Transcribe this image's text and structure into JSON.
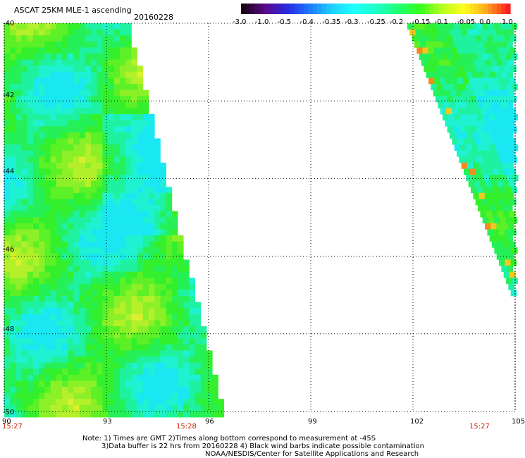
{
  "header": {
    "title": "ASCAT 25KM MLE-1 ascending",
    "date": "20160228"
  },
  "colorbar": {
    "labels": [
      "-3.0",
      "-1.0",
      "-0.5",
      "-0.4",
      "-0.35",
      "-0.3",
      "-0.25",
      "-0.2",
      "-0.15",
      "-0.1",
      "-0.05",
      "0.0",
      "1.0"
    ],
    "colors": [
      "#1a0014",
      "#5a0a8c",
      "#2a2ae0",
      "#1e78ff",
      "#1ecfff",
      "#1effff",
      "#1effc8",
      "#1eff78",
      "#32ff1e",
      "#b4ff1e",
      "#ffff1e",
      "#ffaa1e",
      "#ff1e1e"
    ]
  },
  "map": {
    "lat_labels": [
      "-40",
      "-42",
      "-44",
      "-46",
      "-48",
      "-50"
    ],
    "lon_labels": [
      "90",
      "93",
      "96",
      "99",
      "102",
      "105"
    ],
    "lat_range": [
      -50,
      -40
    ],
    "lon_range": [
      90,
      105
    ],
    "times": [
      "15:27",
      "15:28",
      "15:27"
    ]
  },
  "footer": {
    "line1": "Note: 1) Times are GMT 2)Times along bottom correspond to measurement at -45S",
    "line2": "3)Data buffer is 22 hrs from 20160228 4) Black wind barbs indicate possible contamination",
    "line3": "NOAA/NESDIS/Center for Satellite Applications and Research"
  }
}
